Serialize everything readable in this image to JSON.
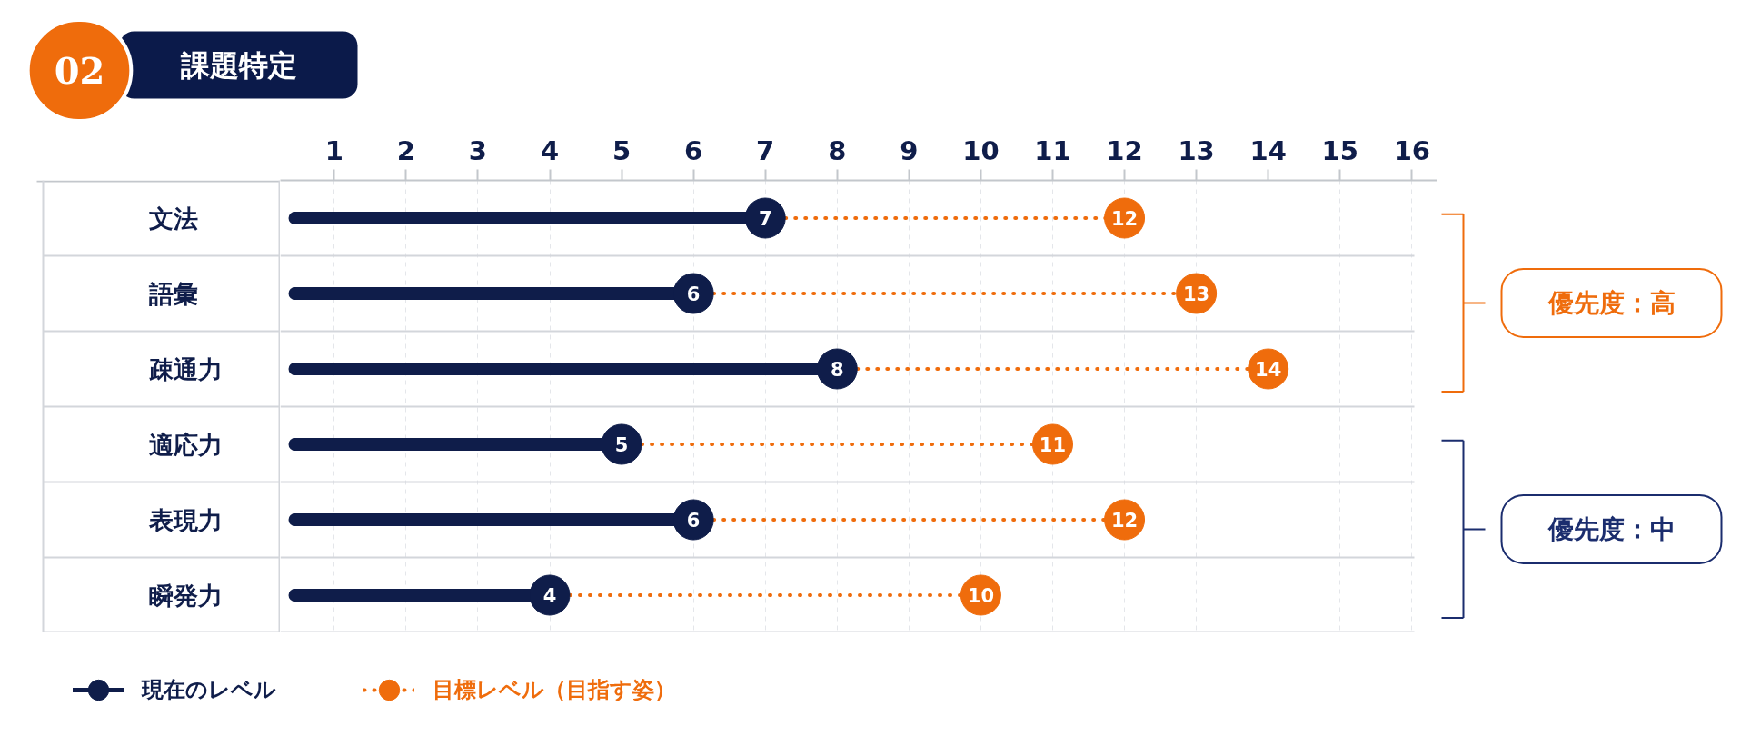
{
  "chart_data": {
    "type": "lollipop",
    "orientation": "horizontal",
    "title": "課題特定",
    "annotations": [
      "02",
      "優先度：高",
      "優先度：中"
    ],
    "categories": [
      "文法",
      "語彙",
      "疎通力",
      "適応力",
      "表現力",
      "瞬発力"
    ],
    "series": [
      {
        "name": "現在のレベル",
        "color": "#0f1d4a",
        "values": [
          7,
          6,
          8,
          5,
          6,
          4
        ],
        "line_style": "solid"
      },
      {
        "name": "目標レベル（目指す姿）",
        "color": "#ef6c0c",
        "values": [
          12,
          13,
          14,
          11,
          12,
          10
        ],
        "line_style": "dotted"
      }
    ],
    "xlim": [
      0.25,
      16.35
    ],
    "xticks": [
      1,
      2,
      3,
      4,
      5,
      6,
      7,
      8,
      9,
      10,
      11,
      12,
      13,
      14,
      15,
      16
    ],
    "grid": "x",
    "legend": "bottom left",
    "data_labels": true,
    "marker": "circle"
  }
}
